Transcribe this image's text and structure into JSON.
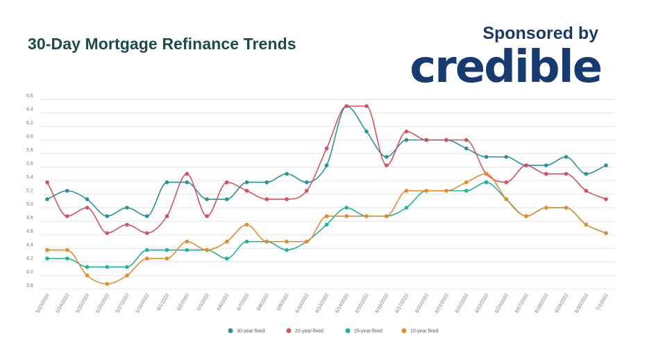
{
  "header": {
    "sponsor_text": "Sponsored by",
    "logo_text": "credible"
  },
  "chart_data": {
    "type": "line",
    "title": "30-Day Mortgage Refinance Trends",
    "xlabel": "",
    "ylabel": "",
    "ylim": [
      3.8,
      6.6
    ],
    "yticks": [
      "6.6",
      "6.4",
      "6.2",
      "6.0",
      "5.8",
      "5.6",
      "5.4",
      "5.2",
      "5.0",
      "4.8",
      "4.6",
      "4.4",
      "4.2",
      "4.0",
      "3.8"
    ],
    "grid": true,
    "legend_position": "bottom",
    "categories": [
      "5/23/2022",
      "5/24/2022",
      "5/25/2022",
      "5/26/2022",
      "5/27/2022",
      "5/31/2022",
      "6/1/2022",
      "6/2/2022",
      "6/3/2022",
      "6/6/2022",
      "6/7/2022",
      "6/8/2022",
      "6/9/2022",
      "6/10/2022",
      "6/13/2022",
      "6/14/2022",
      "6/15/2022",
      "6/16/2022",
      "6/17/2022",
      "6/20/2022",
      "6/21/2022",
      "6/22/2022",
      "6/23/2022",
      "6/24/2022",
      "6/27/2022",
      "6/28/2022",
      "6/29/2022",
      "6/30/2022",
      "7/1/2022"
    ],
    "series": [
      {
        "name": "30-year fixed",
        "color": "#2a9096",
        "values": [
          5.125,
          5.25,
          5.125,
          4.875,
          5.0,
          4.875,
          5.375,
          5.375,
          5.125,
          5.125,
          5.375,
          5.375,
          5.5,
          5.375,
          5.625,
          6.5,
          6.125,
          5.75,
          6.0,
          6.0,
          6.0,
          5.875,
          5.75,
          5.75,
          5.625,
          5.625,
          5.75,
          5.5,
          5.625
        ]
      },
      {
        "name": "20-year-fixed",
        "color": "#d0525f",
        "values": [
          5.375,
          4.875,
          5.0,
          4.625,
          4.75,
          4.625,
          4.875,
          5.5,
          4.875,
          5.375,
          5.25,
          5.125,
          5.125,
          5.25,
          5.875,
          6.5,
          6.5,
          5.625,
          6.125,
          6.0,
          6.0,
          6.0,
          5.5,
          5.375,
          5.625,
          5.5,
          5.5,
          5.25,
          5.125
        ]
      },
      {
        "name": "15-year-fixed",
        "color": "#1fb39a",
        "values": [
          4.25,
          4.25,
          4.125,
          4.125,
          4.125,
          4.375,
          4.375,
          4.375,
          4.375,
          4.25,
          4.5,
          4.5,
          4.375,
          4.5,
          4.75,
          5.0,
          4.875,
          4.875,
          5.0,
          5.25,
          5.25,
          5.25,
          5.375,
          5.125,
          4.875,
          5.0,
          5.0,
          4.75,
          4.625
        ]
      },
      {
        "name": "10-year fixed",
        "color": "#e8892b",
        "values": [
          4.375,
          4.375,
          4.0,
          3.875,
          4.0,
          4.25,
          4.25,
          4.5,
          4.375,
          4.5,
          4.75,
          4.5,
          4.5,
          4.5,
          4.875,
          4.875,
          4.875,
          4.875,
          5.25,
          5.25,
          5.25,
          5.375,
          5.5,
          5.125,
          4.875,
          5.0,
          5.0,
          4.75,
          4.625
        ]
      }
    ]
  }
}
